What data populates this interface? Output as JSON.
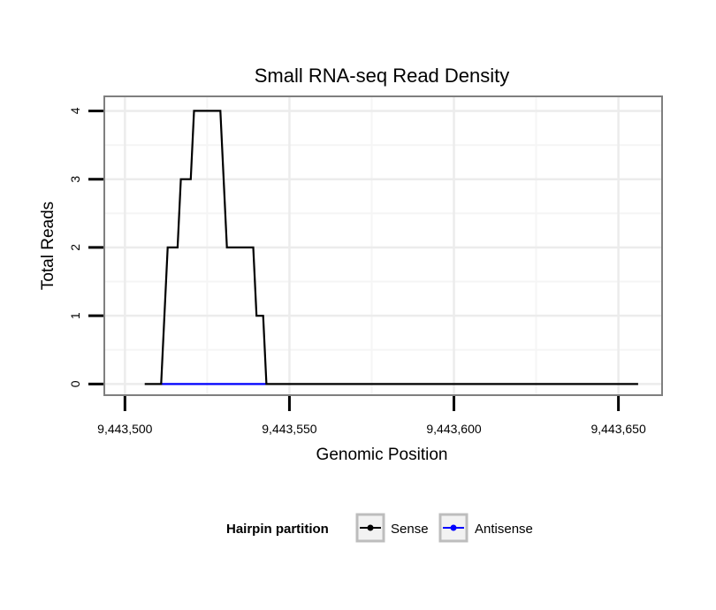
{
  "chart_data": {
    "type": "line",
    "title": "Small RNA-seq Read Density",
    "xlabel": "Genomic Position",
    "ylabel": "Total Reads",
    "xlim": [
      9443494,
      9443663
    ],
    "ylim": [
      -0.15,
      4.2
    ],
    "x_ticks": [
      9443500,
      9443550,
      9443600,
      9443650
    ],
    "x_tick_labels": [
      "9,443,500",
      "9,443,550",
      "9,443,600",
      "9,443,650"
    ],
    "y_ticks": [
      0,
      1,
      2,
      3,
      4
    ],
    "y_tick_labels": [
      "0",
      "1",
      "2",
      "3",
      "4"
    ],
    "grid": true,
    "legend": {
      "title": "Hairpin partition",
      "position": "bottom",
      "entries": [
        "Sense",
        "Antisense"
      ]
    },
    "series": [
      {
        "name": "Sense",
        "color": "#000000",
        "x": [
          9443506,
          9443511,
          9443513,
          9443516,
          9443517,
          9443520,
          9443521,
          9443529,
          9443531,
          9443539,
          9443540,
          9443542,
          9443543,
          9443656
        ],
        "y": [
          0,
          0,
          2,
          2,
          3,
          3,
          4,
          4,
          2,
          2,
          1,
          1,
          0,
          0
        ]
      },
      {
        "name": "Antisense",
        "color": "#0000ff",
        "x": [
          9443511,
          9443543
        ],
        "y": [
          0,
          0
        ]
      }
    ]
  }
}
